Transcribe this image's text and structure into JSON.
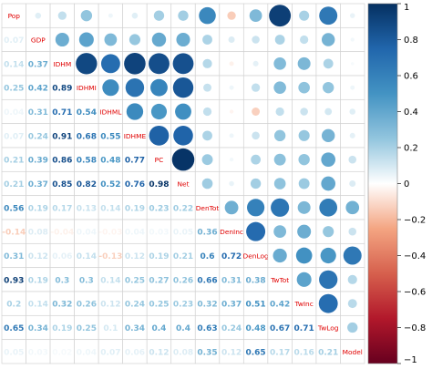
{
  "chart_data": {
    "type": "heatmap",
    "variables": [
      "Pop",
      "GDP",
      "IDHM",
      "IDHMI",
      "IDHML",
      "IDHME",
      "PC",
      "Net",
      "DenTot",
      "DenInc",
      "DenLog",
      "TwTot",
      "TwInc",
      "TwLog",
      "Model"
    ],
    "matrix": [
      [
        1,
        0.07,
        0.14,
        0.25,
        0.04,
        0.07,
        0.21,
        0.21,
        0.56,
        -0.14,
        0.31,
        0.93,
        0.2,
        0.65,
        0.05
      ],
      [
        0.07,
        1,
        0.37,
        0.42,
        0.31,
        0.24,
        0.39,
        0.37,
        0.19,
        0.08,
        0.12,
        0.19,
        0.14,
        0.34,
        0.03
      ],
      [
        0.14,
        0.37,
        1,
        0.89,
        0.71,
        0.91,
        0.86,
        0.85,
        0.17,
        -0.04,
        0.06,
        0.3,
        0.32,
        0.19,
        0.02
      ],
      [
        0.25,
        0.42,
        0.89,
        1,
        0.54,
        0.68,
        0.58,
        0.82,
        0.13,
        0.04,
        0.14,
        0.3,
        0.26,
        0.25,
        0.04
      ],
      [
        0.04,
        0.31,
        0.71,
        0.54,
        1,
        0.55,
        0.48,
        0.52,
        0.14,
        -0.03,
        -0.13,
        0.14,
        0.12,
        0.1,
        0.07
      ],
      [
        0.07,
        0.24,
        0.91,
        0.68,
        0.55,
        1,
        0.77,
        0.76,
        0.19,
        0.04,
        0.12,
        0.25,
        0.24,
        0.34,
        0.06
      ],
      [
        0.21,
        0.39,
        0.86,
        0.58,
        0.48,
        0.77,
        1,
        0.98,
        0.23,
        0.03,
        0.19,
        0.27,
        0.25,
        0.4,
        0.12
      ],
      [
        0.21,
        0.37,
        0.85,
        0.82,
        0.52,
        0.76,
        0.98,
        1,
        0.22,
        0.05,
        0.21,
        0.26,
        0.23,
        0.4,
        0.08
      ],
      [
        0.56,
        0.19,
        0.17,
        0.13,
        0.14,
        0.19,
        0.23,
        0.22,
        1,
        0.36,
        0.6,
        0.66,
        0.32,
        0.63,
        0.35
      ],
      [
        -0.14,
        0.08,
        -0.04,
        0.04,
        -0.03,
        0.04,
        0.03,
        0.05,
        0.36,
        1,
        0.72,
        0.31,
        0.37,
        0.24,
        0.12
      ],
      [
        0.31,
        0.12,
        0.06,
        0.14,
        -0.13,
        0.12,
        0.19,
        0.21,
        0.6,
        0.72,
        1,
        0.38,
        0.51,
        0.48,
        0.65
      ],
      [
        0.93,
        0.19,
        0.3,
        0.3,
        0.14,
        0.25,
        0.27,
        0.26,
        0.66,
        0.31,
        0.38,
        1,
        0.42,
        0.67,
        0.17
      ],
      [
        0.2,
        0.14,
        0.32,
        0.26,
        0.12,
        0.24,
        0.25,
        0.23,
        0.32,
        0.37,
        0.51,
        0.42,
        1,
        0.71,
        0.16
      ],
      [
        0.65,
        0.34,
        0.19,
        0.25,
        0.1,
        0.34,
        0.4,
        0.4,
        0.63,
        0.24,
        0.48,
        0.67,
        0.71,
        1,
        0.21
      ],
      [
        0.05,
        0.03,
        0.02,
        0.04,
        0.07,
        0.06,
        0.12,
        0.08,
        0.35,
        0.12,
        0.65,
        0.17,
        0.16,
        0.21,
        1
      ]
    ],
    "upper": "circle",
    "lower": "number",
    "diagonal": "label",
    "colorbar": {
      "range": [
        -1,
        1
      ],
      "ticks": [
        "1",
        "0.8",
        "0.6",
        "0.4",
        "0.2",
        "0",
        "−0.2",
        "−0.4",
        "−0.6",
        "−0.8",
        "−1"
      ],
      "placement": "right"
    },
    "colors": {
      "negative_end": "#67001f",
      "negative_mid": "#d6604d",
      "neutral": "#ffffff",
      "positive_mid": "#4393c3",
      "positive_end": "#053061",
      "grid": "#d2d2d2",
      "label": "#e00000"
    }
  }
}
